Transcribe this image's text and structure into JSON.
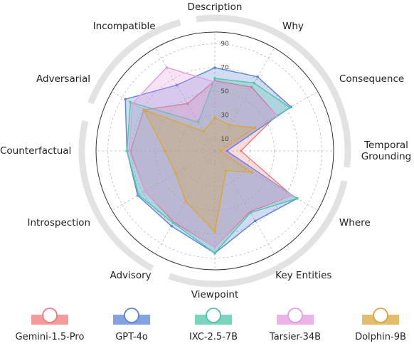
{
  "chart_data": {
    "type": "radar",
    "categories": [
      "Description",
      "Why",
      "Consequence",
      "Temporal Grounding",
      "Where",
      "Key Entities",
      "Viewpoint",
      "Advisory",
      "Introspection",
      "Counterfactual",
      "Adversarial",
      "Incompatible"
    ],
    "series": [
      {
        "name": "Gemini-1.5-Pro",
        "color": "#f07b7b",
        "values": [
          59,
          62,
          60,
          22,
          75,
          59,
          81,
          69,
          68,
          71,
          69,
          46
        ]
      },
      {
        "name": "GPT-4o",
        "color": "#5b83d6",
        "values": [
          70,
          72,
          74,
          10,
          80,
          68,
          86,
          73,
          75,
          74,
          87,
          64
        ]
      },
      {
        "name": "IXC-2.5-7B",
        "color": "#4fc6a8",
        "values": [
          61,
          66,
          73,
          8,
          80,
          60,
          86,
          70,
          74,
          74,
          82,
          28
        ]
      },
      {
        "name": "Tarsier-34B",
        "color": "#e69ae0",
        "values": [
          58,
          60,
          60,
          8,
          75,
          58,
          81,
          68,
          68,
          72,
          80,
          81
        ]
      },
      {
        "name": "Dolphin-9B",
        "color": "#d8a73a",
        "values": [
          28,
          25,
          39,
          5,
          36,
          19,
          68,
          49,
          38,
          42,
          69,
          19
        ]
      }
    ],
    "rlim": [
      0,
      100
    ],
    "rticks": [
      10,
      30,
      50,
      70,
      90
    ],
    "grid": true
  }
}
